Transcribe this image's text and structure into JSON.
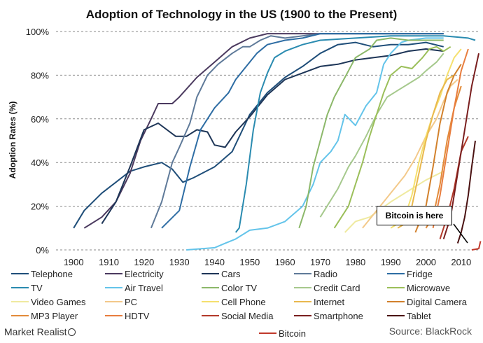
{
  "chart_data": {
    "type": "line",
    "title": "Adoption of Technology in the US (1900 to the Present)",
    "ylabel": "Adoption Rates (%)",
    "xlabel": "",
    "xlim": [
      1895,
      2015
    ],
    "ylim": [
      0,
      100
    ],
    "x_ticks": [
      "1900",
      "1910",
      "1920",
      "1930",
      "1940",
      "1950",
      "1960",
      "1970",
      "1980",
      "1990",
      "2000",
      "2010"
    ],
    "x_tick_values": [
      1900,
      1910,
      1920,
      1930,
      1940,
      1950,
      1960,
      1970,
      1980,
      1990,
      2000,
      2010
    ],
    "y_ticks": [
      "0%",
      "20%",
      "40%",
      "60%",
      "80%",
      "100%"
    ],
    "y_tick_values": [
      0,
      20,
      40,
      60,
      80,
      100
    ],
    "grid": "horizontal dashed",
    "legend_position": "bottom",
    "series": [
      {
        "name": "Telephone",
        "color": "#1f4e79",
        "points": [
          [
            1900,
            10
          ],
          [
            1903,
            18
          ],
          [
            1908,
            26
          ],
          [
            1912,
            31
          ],
          [
            1916,
            36
          ],
          [
            1920,
            38
          ],
          [
            1925,
            40
          ],
          [
            1928,
            37
          ],
          [
            1931,
            31
          ],
          [
            1934,
            33
          ],
          [
            1940,
            38
          ],
          [
            1945,
            45
          ],
          [
            1950,
            62
          ],
          [
            1955,
            72
          ],
          [
            1960,
            79
          ],
          [
            1965,
            84
          ],
          [
            1970,
            90
          ],
          [
            1975,
            94
          ],
          [
            1980,
            95
          ],
          [
            1985,
            93
          ],
          [
            1990,
            94
          ],
          [
            1995,
            94
          ],
          [
            2000,
            95
          ],
          [
            2005,
            93
          ]
        ]
      },
      {
        "name": "Electricity",
        "color": "#4b3a5f",
        "points": [
          [
            1903,
            10
          ],
          [
            1908,
            15
          ],
          [
            1912,
            22
          ],
          [
            1916,
            35
          ],
          [
            1919,
            50
          ],
          [
            1922,
            60
          ],
          [
            1924,
            67
          ],
          [
            1928,
            67
          ],
          [
            1930,
            70
          ],
          [
            1935,
            79
          ],
          [
            1940,
            86
          ],
          [
            1945,
            93
          ],
          [
            1950,
            97
          ],
          [
            1955,
            99
          ],
          [
            1960,
            99
          ],
          [
            2005,
            99
          ]
        ]
      },
      {
        "name": "Cars",
        "color": "#1d3557",
        "points": [
          [
            1908,
            12
          ],
          [
            1912,
            22
          ],
          [
            1916,
            38
          ],
          [
            1920,
            55
          ],
          [
            1924,
            58
          ],
          [
            1929,
            52
          ],
          [
            1932,
            52
          ],
          [
            1935,
            55
          ],
          [
            1938,
            54
          ],
          [
            1940,
            48
          ],
          [
            1943,
            47
          ],
          [
            1946,
            54
          ],
          [
            1950,
            61
          ],
          [
            1955,
            71
          ],
          [
            1960,
            78
          ],
          [
            1965,
            81
          ],
          [
            1970,
            84
          ],
          [
            1975,
            85
          ],
          [
            1980,
            87
          ],
          [
            1985,
            88
          ],
          [
            1990,
            89
          ],
          [
            1995,
            91
          ],
          [
            2000,
            92
          ],
          [
            2005,
            91
          ]
        ]
      },
      {
        "name": "Radio",
        "color": "#5f7a99",
        "points": [
          [
            1922,
            10
          ],
          [
            1925,
            22
          ],
          [
            1928,
            40
          ],
          [
            1930,
            47
          ],
          [
            1933,
            58
          ],
          [
            1935,
            70
          ],
          [
            1938,
            80
          ],
          [
            1941,
            85
          ],
          [
            1945,
            90
          ],
          [
            1948,
            93
          ],
          [
            1950,
            93
          ],
          [
            1953,
            96
          ],
          [
            1956,
            98
          ],
          [
            1960,
            97
          ],
          [
            1965,
            98
          ],
          [
            1970,
            99
          ],
          [
            2005,
            99
          ]
        ]
      },
      {
        "name": "Fridge",
        "color": "#2e6da4",
        "points": [
          [
            1925,
            10
          ],
          [
            1930,
            18
          ],
          [
            1933,
            38
          ],
          [
            1936,
            55
          ],
          [
            1940,
            65
          ],
          [
            1944,
            72
          ],
          [
            1946,
            78
          ],
          [
            1949,
            84
          ],
          [
            1952,
            90
          ],
          [
            1955,
            94
          ],
          [
            1960,
            96
          ],
          [
            1965,
            97
          ],
          [
            1970,
            99
          ],
          [
            2005,
            99
          ]
        ]
      },
      {
        "name": "TV",
        "color": "#2a8bb0",
        "points": [
          [
            1946,
            8
          ],
          [
            1947,
            10
          ],
          [
            1949,
            30
          ],
          [
            1951,
            55
          ],
          [
            1953,
            72
          ],
          [
            1955,
            81
          ],
          [
            1957,
            88
          ],
          [
            1960,
            91
          ],
          [
            1965,
            94
          ],
          [
            1970,
            96
          ],
          [
            1980,
            97
          ],
          [
            1990,
            98
          ],
          [
            2000,
            98
          ],
          [
            2005,
            98
          ],
          [
            2012,
            97
          ],
          [
            2014,
            96
          ]
        ]
      },
      {
        "name": "Air Travel",
        "color": "#64c4ea",
        "points": [
          [
            1932,
            0
          ],
          [
            1940,
            1
          ],
          [
            1943,
            3
          ],
          [
            1946,
            5
          ],
          [
            1950,
            9
          ],
          [
            1955,
            10
          ],
          [
            1960,
            13
          ],
          [
            1965,
            20
          ],
          [
            1968,
            30
          ],
          [
            1970,
            40
          ],
          [
            1973,
            45
          ],
          [
            1975,
            50
          ],
          [
            1977,
            62
          ],
          [
            1980,
            57
          ],
          [
            1983,
            66
          ],
          [
            1986,
            72
          ],
          [
            1988,
            85
          ],
          [
            1990,
            90
          ],
          [
            1993,
            95
          ],
          [
            1995,
            96
          ],
          [
            2000,
            97
          ],
          [
            2005,
            97
          ]
        ]
      },
      {
        "name": "Color TV",
        "color": "#8cb86a",
        "points": [
          [
            1964,
            10
          ],
          [
            1966,
            20
          ],
          [
            1968,
            38
          ],
          [
            1970,
            50
          ],
          [
            1972,
            62
          ],
          [
            1974,
            70
          ],
          [
            1976,
            76
          ],
          [
            1978,
            82
          ],
          [
            1980,
            88
          ],
          [
            1984,
            92
          ],
          [
            1986,
            96
          ],
          [
            1990,
            97
          ],
          [
            1995,
            96
          ],
          [
            2000,
            96
          ],
          [
            2005,
            96
          ]
        ]
      },
      {
        "name": "Credit Card",
        "color": "#a6c98d",
        "points": [
          [
            1970,
            15
          ],
          [
            1975,
            28
          ],
          [
            1978,
            38
          ],
          [
            1980,
            43
          ],
          [
            1983,
            52
          ],
          [
            1986,
            62
          ],
          [
            1989,
            70
          ],
          [
            1992,
            73
          ],
          [
            1995,
            76
          ],
          [
            1998,
            79
          ],
          [
            2000,
            82
          ],
          [
            2003,
            86
          ],
          [
            2005,
            90
          ]
        ]
      },
      {
        "name": "Microwave",
        "color": "#9bbf5a",
        "points": [
          [
            1974,
            10
          ],
          [
            1976,
            15
          ],
          [
            1978,
            20
          ],
          [
            1980,
            30
          ],
          [
            1982,
            40
          ],
          [
            1984,
            52
          ],
          [
            1986,
            62
          ],
          [
            1988,
            72
          ],
          [
            1990,
            80
          ],
          [
            1993,
            84
          ],
          [
            1996,
            83
          ],
          [
            1999,
            88
          ],
          [
            2001,
            92
          ],
          [
            2003,
            93
          ],
          [
            2005,
            91
          ],
          [
            2007,
            93
          ]
        ]
      },
      {
        "name": "Video Games",
        "color": "#efeaa0",
        "points": [
          [
            1977,
            8
          ],
          [
            1980,
            13
          ],
          [
            1984,
            15
          ],
          [
            1990,
            22
          ],
          [
            1996,
            28
          ],
          [
            2000,
            32
          ],
          [
            2005,
            36
          ]
        ]
      },
      {
        "name": "PC",
        "color": "#f3c98a",
        "points": [
          [
            1982,
            10
          ],
          [
            1985,
            16
          ],
          [
            1988,
            22
          ],
          [
            1991,
            28
          ],
          [
            1994,
            34
          ],
          [
            1997,
            42
          ],
          [
            2000,
            52
          ],
          [
            2003,
            60
          ],
          [
            2005,
            68
          ],
          [
            2007,
            75
          ],
          [
            2009,
            78
          ]
        ]
      },
      {
        "name": "Cell Phone",
        "color": "#f5e06e",
        "points": [
          [
            1990,
            10
          ],
          [
            1992,
            12
          ],
          [
            1994,
            15
          ],
          [
            1996,
            25
          ],
          [
            1998,
            40
          ],
          [
            2000,
            52
          ],
          [
            2002,
            62
          ],
          [
            2004,
            70
          ],
          [
            2006,
            80
          ],
          [
            2008,
            88
          ],
          [
            2010,
            92
          ]
        ]
      },
      {
        "name": "Internet",
        "color": "#e9b84e",
        "points": [
          [
            1992,
            10
          ],
          [
            1994,
            12
          ],
          [
            1996,
            20
          ],
          [
            1998,
            35
          ],
          [
            2000,
            50
          ],
          [
            2002,
            62
          ],
          [
            2004,
            72
          ],
          [
            2006,
            78
          ],
          [
            2008,
            80
          ]
        ]
      },
      {
        "name": "Digital Camera",
        "color": "#d2812c",
        "points": [
          [
            1997,
            8
          ],
          [
            2000,
            20
          ],
          [
            2002,
            38
          ],
          [
            2004,
            58
          ],
          [
            2006,
            72
          ],
          [
            2008,
            80
          ],
          [
            2010,
            85
          ]
        ]
      },
      {
        "name": "MP3 Player",
        "color": "#e28b3a",
        "points": [
          [
            2000,
            10
          ],
          [
            2002,
            15
          ],
          [
            2004,
            30
          ],
          [
            2006,
            50
          ],
          [
            2008,
            65
          ],
          [
            2010,
            75
          ]
        ]
      },
      {
        "name": "HDTV",
        "color": "#e87d3e",
        "points": [
          [
            2002,
            10
          ],
          [
            2004,
            25
          ],
          [
            2006,
            45
          ],
          [
            2008,
            65
          ],
          [
            2010,
            82
          ],
          [
            2012,
            92
          ]
        ]
      },
      {
        "name": "Social Media",
        "color": "#b33a2a",
        "points": [
          [
            2004,
            5
          ],
          [
            2006,
            15
          ],
          [
            2008,
            28
          ],
          [
            2010,
            45
          ],
          [
            2012,
            52
          ]
        ]
      },
      {
        "name": "Smartphone",
        "color": "#7a1f1f",
        "points": [
          [
            2005,
            5
          ],
          [
            2007,
            15
          ],
          [
            2009,
            35
          ],
          [
            2011,
            55
          ],
          [
            2013,
            75
          ],
          [
            2015,
            90
          ]
        ]
      },
      {
        "name": "Tablet",
        "color": "#4a1212",
        "points": [
          [
            2009,
            3
          ],
          [
            2010,
            8
          ],
          [
            2011,
            15
          ],
          [
            2012,
            25
          ],
          [
            2013,
            38
          ],
          [
            2014,
            50
          ]
        ]
      },
      {
        "name": "Bitcoin",
        "color": "#c0392b",
        "points": [
          [
            2013,
            0
          ],
          [
            2014,
            0.3
          ],
          [
            2015,
            0.6
          ],
          [
            2015.5,
            4
          ]
        ]
      }
    ],
    "annotation": "Bitcoin is here",
    "source": "Source: BlackRock",
    "brand": "Market Realist"
  }
}
